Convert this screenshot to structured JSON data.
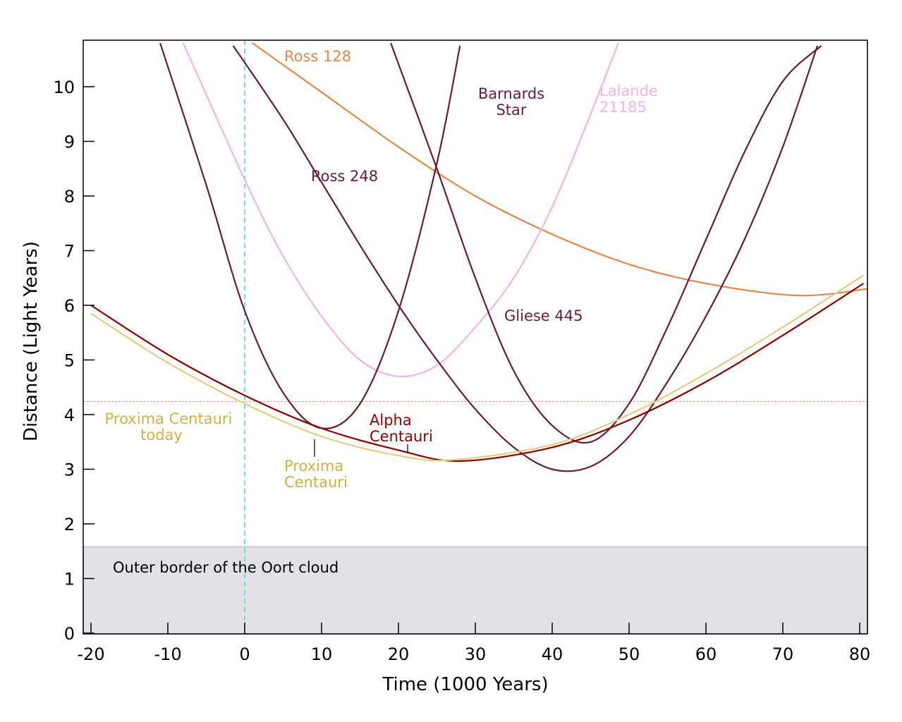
{
  "chart_data": {
    "type": "line",
    "xlabel": "Time (1000 Years)",
    "ylabel": "Distance (Light Years)",
    "xlim": [
      -21,
      81
    ],
    "ylim": [
      0,
      10.8
    ],
    "x_ticks": [
      -20,
      -10,
      0,
      10,
      20,
      30,
      40,
      50,
      60,
      70,
      80
    ],
    "y_ticks": [
      0,
      1,
      2,
      3,
      4,
      5,
      6,
      7,
      8,
      9,
      10
    ],
    "grid": false,
    "series": [
      {
        "name": "Ross 128",
        "color": "#e0894a",
        "x": [
          1,
          10,
          20,
          30,
          40,
          50,
          60,
          72,
          81
        ],
        "y": [
          10.8,
          9.9,
          8.9,
          8.0,
          7.3,
          6.75,
          6.4,
          6.18,
          6.3
        ]
      },
      {
        "name": "Lalande 21185",
        "color": "#f2b3e6",
        "x": [
          -8,
          0,
          5,
          10,
          15,
          20,
          25,
          30,
          35,
          40,
          45,
          48.6
        ],
        "y": [
          10.8,
          8.3,
          6.9,
          5.8,
          5.0,
          4.7,
          4.9,
          5.6,
          6.5,
          7.8,
          9.5,
          10.8
        ]
      },
      {
        "name": "Barnards Star",
        "color": "#6b1a3a",
        "x": [
          -11,
          -5,
          0,
          5,
          10,
          15,
          20,
          25,
          28
        ],
        "y": [
          10.8,
          8.2,
          5.9,
          4.4,
          3.75,
          4.2,
          5.9,
          8.6,
          10.75
        ]
      },
      {
        "name": "Ross 248",
        "color": "#6b1a3a",
        "x": [
          -1.5,
          5,
          10,
          15,
          20,
          25,
          30,
          35,
          40,
          45,
          50,
          55,
          60,
          65,
          70,
          74.5
        ],
        "y": [
          10.75,
          9.4,
          8.25,
          7.1,
          6.0,
          5.0,
          4.1,
          3.4,
          3.0,
          3.05,
          3.6,
          4.6,
          5.8,
          7.2,
          8.9,
          10.75
        ]
      },
      {
        "name": "Gliese 445",
        "color": "#6b1a3a",
        "x": [
          19,
          25,
          30,
          35,
          40,
          45,
          50,
          55,
          60,
          65,
          70,
          75
        ],
        "y": [
          10.8,
          8.5,
          6.5,
          4.8,
          3.8,
          3.5,
          4.2,
          5.6,
          7.2,
          8.8,
          10.1,
          10.75
        ]
      },
      {
        "name": "Alpha Centauri",
        "color": "#8b0000",
        "x": [
          -20,
          -10,
          0,
          10,
          20,
          28,
          40,
          50,
          60,
          70,
          80.5
        ],
        "y": [
          6.0,
          5.1,
          4.35,
          3.75,
          3.35,
          3.15,
          3.4,
          3.9,
          4.6,
          5.45,
          6.4
        ]
      },
      {
        "name": "Proxima Centauri",
        "color": "#e6cc80",
        "x": [
          -20,
          -10,
          0,
          10,
          20,
          27,
          40,
          50,
          60,
          70,
          80.5
        ],
        "y": [
          5.85,
          4.95,
          4.2,
          3.6,
          3.25,
          3.17,
          3.45,
          4.0,
          4.75,
          5.6,
          6.55
        ]
      }
    ],
    "reference_lines": {
      "proxima_today_y": 4.24,
      "proxima_today_color": "#d4a017",
      "now_x": 0,
      "now_color": "#4dd5f0"
    },
    "oort_band": {
      "y_top": 1.58,
      "color": "#e1e1e6"
    },
    "annotations": {
      "ross128": "Ross 128",
      "lalande_1": "Lalande",
      "lalande_2": "21185",
      "barnard_1": "Barnards",
      "barnard_2": "Star",
      "ross248": "Ross 248",
      "gliese": "Gliese 445",
      "alpha_1": "Alpha",
      "alpha_2": "Centauri",
      "proxima_1": "Proxima",
      "proxima_2": "Centauri",
      "proxima_today_1": "Proxima Centauri",
      "proxima_today_2": "today",
      "oort": "Outer border of the Oort cloud"
    }
  }
}
